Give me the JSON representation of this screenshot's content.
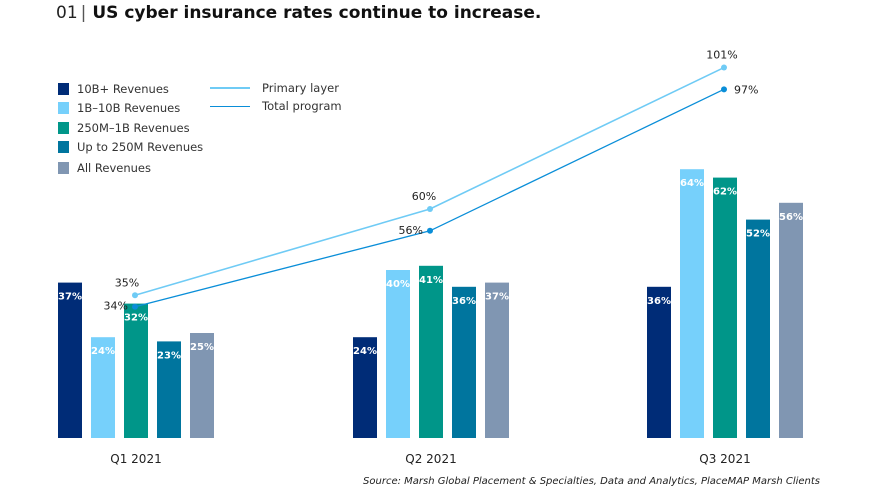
{
  "title": {
    "number": "01",
    "text": "US cyber insurance rates continue to increase."
  },
  "legend": {
    "bars": [
      {
        "label": "10B+ Revenues",
        "color": "#002c77"
      },
      {
        "label": "1B–10B Revenues",
        "color": "#76d0fb"
      },
      {
        "label": "250M–1B Revenues",
        "color": "#009689"
      },
      {
        "label": "Up to 250M Revenues",
        "color": "#00759e"
      },
      {
        "label": "All Revenues",
        "color": "#8096b2"
      }
    ],
    "lines": [
      {
        "label": "Primary layer",
        "color": "#6fcbf5"
      },
      {
        "label": "Total program",
        "color": "#0a8ed8"
      }
    ]
  },
  "chart_data": {
    "type": "bar",
    "title": "US cyber insurance rates continue to increase.",
    "categories": [
      "Q1 2021",
      "Q2 2021",
      "Q3 2021"
    ],
    "series": [
      {
        "name": "10B+ Revenues",
        "values": [
          37,
          24,
          36
        ],
        "labels": [
          "37%",
          "24%",
          "36%"
        ]
      },
      {
        "name": "1B–10B Revenues",
        "values": [
          24,
          40,
          64
        ],
        "labels": [
          "24%",
          "40%",
          "64%"
        ]
      },
      {
        "name": "250M–1B Revenues",
        "values": [
          32,
          41,
          62
        ],
        "labels": [
          "32%",
          "41%",
          "62%"
        ]
      },
      {
        "name": "Up to 250M Revenues",
        "values": [
          23,
          36,
          52
        ],
        "labels": [
          "23%",
          "36%",
          "52%"
        ]
      },
      {
        "name": "All Revenues",
        "values": [
          25,
          37,
          56
        ],
        "labels": [
          "25%",
          "37%",
          "56%"
        ]
      }
    ],
    "line_series": [
      {
        "name": "Primary layer",
        "type": "line",
        "values": [
          35,
          60,
          101
        ],
        "labels": [
          "35%",
          "60%",
          "101%"
        ]
      },
      {
        "name": "Total program",
        "type": "line",
        "values": [
          34,
          56,
          97
        ],
        "labels": [
          "34%",
          "56%",
          "97%"
        ]
      }
    ],
    "unit": "%",
    "grid": false,
    "legend_placement": "top-left"
  },
  "source": "Source: Marsh Global Placement & Specialties, Data and Analytics, PlaceMAP Marsh Clients"
}
